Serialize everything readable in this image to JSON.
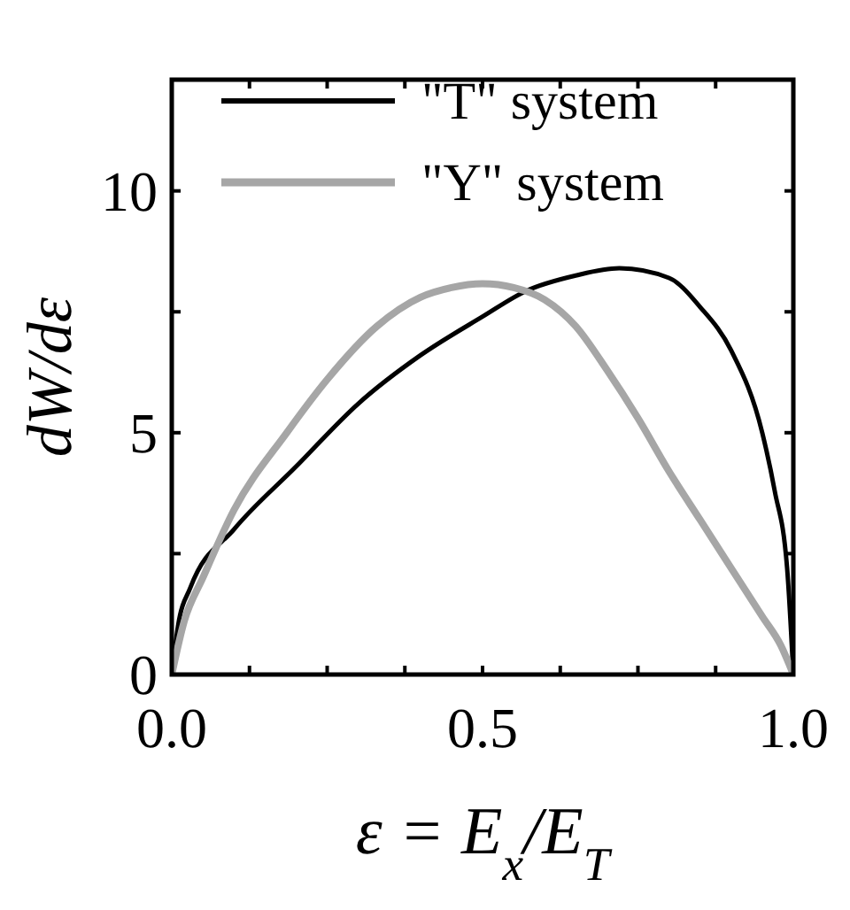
{
  "chart_data": {
    "type": "line",
    "xlabel": "ε = E$_{x}$/E$_{T}$",
    "ylabel": "dW/dε",
    "xlim": [
      0,
      1
    ],
    "ylim": [
      0,
      12.3
    ],
    "xticks": [
      {
        "value": 0,
        "label": "0.0"
      },
      {
        "value": 0.125,
        "label": null
      },
      {
        "value": 0.25,
        "label": null
      },
      {
        "value": 0.375,
        "label": null
      },
      {
        "value": 0.5,
        "label": "0.5"
      },
      {
        "value": 0.625,
        "label": null
      },
      {
        "value": 0.75,
        "label": null
      },
      {
        "value": 0.875,
        "label": null
      },
      {
        "value": 1,
        "label": "1.0"
      }
    ],
    "yticks": [
      0,
      {
        "value": 2.5,
        "label": null
      },
      5,
      {
        "value": 7.5,
        "label": null
      },
      10
    ],
    "legend": "top left",
    "grid": false,
    "marker": "none",
    "line_style": "solid",
    "series": [
      {
        "name": "\"T\" system",
        "color": "#000000",
        "x": [
          0,
          0.01,
          0.03,
          0.1,
          0.2,
          0.3,
          0.4,
          0.5,
          0.57,
          0.65,
          0.72,
          0.8,
          0.85,
          0.9,
          0.95,
          0.97,
          0.99,
          1
        ],
        "values": [
          0,
          1.0,
          1.8,
          3.0,
          4.3,
          5.6,
          6.6,
          7.4,
          7.93,
          8.25,
          8.4,
          8.2,
          7.6,
          6.7,
          5.0,
          3.8,
          2.2,
          0
        ]
      },
      {
        "name": "\"Y\" system",
        "color": "#a6a6a6",
        "x": [
          0,
          0.02,
          0.05,
          0.1,
          0.185,
          0.25,
          0.33,
          0.4,
          0.45,
          0.5,
          0.55,
          0.6,
          0.65,
          0.7,
          0.75,
          0.8,
          0.85,
          0.9,
          0.95,
          0.98,
          1
        ],
        "values": [
          0,
          1.1,
          2.0,
          3.4,
          5.0,
          6.1,
          7.2,
          7.8,
          8.0,
          8.08,
          8.0,
          7.75,
          7.2,
          6.3,
          5.3,
          4.2,
          3.2,
          2.2,
          1.2,
          0.6,
          0
        ]
      }
    ]
  }
}
